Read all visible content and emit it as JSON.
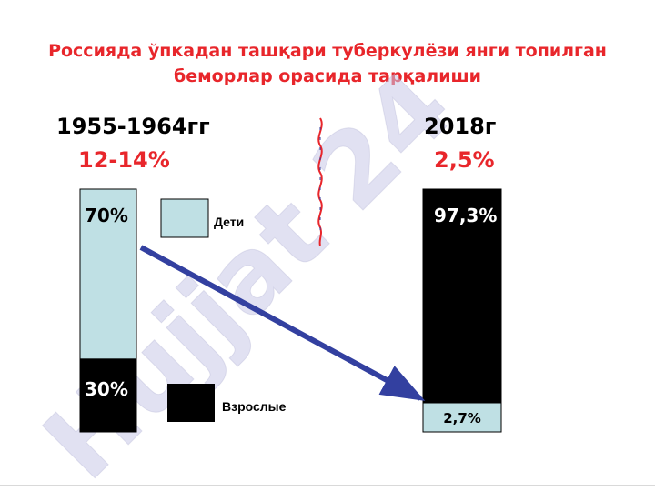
{
  "slide": {
    "title_line1": "Россияда ўпкадан ташқари туберкулёзи янги топилган",
    "title_line2": "беморлар орасида тарқалиши",
    "watermark": "Hujjat 24"
  },
  "chart_data": {
    "type": "bar",
    "stacked": true,
    "categories": [
      "1955-1964гг",
      "2018г"
    ],
    "category_totals": [
      "12-14%",
      "2,5%"
    ],
    "series": [
      {
        "name": "Дети",
        "values": [
          70,
          2.7
        ],
        "labels": [
          "70%",
          "2,7%"
        ],
        "color": "#bfe0e4"
      },
      {
        "name": "Взрослые",
        "values": [
          30,
          97.3
        ],
        "labels": [
          "30%",
          "97,3%"
        ],
        "color": "#000000"
      }
    ],
    "ylim": [
      0,
      100
    ],
    "legend": "center",
    "colors": {
      "title": "#e8262b",
      "total": "#e8262b",
      "arrow": "#3340a0",
      "divider": "#e8262b"
    }
  }
}
